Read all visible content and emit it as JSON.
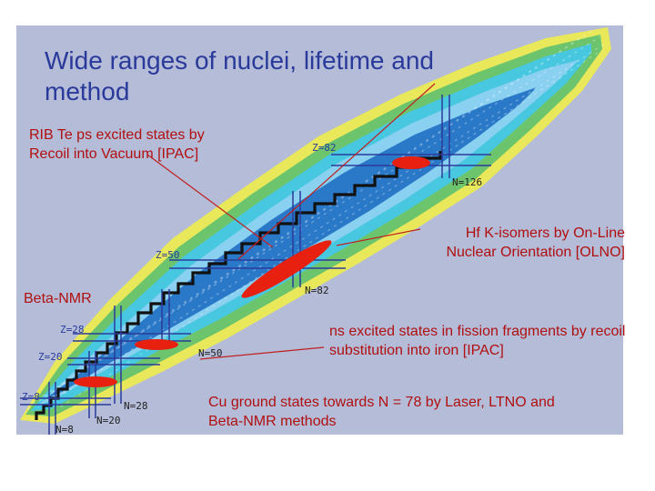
{
  "title": "Wide ranges of nuclei, lifetime and method",
  "annotations": {
    "rib_te": "RIB Te ps excited states by Recoil into Vacuum [IPAC]",
    "hf_k": "Hf K-isomers by On-Line Nuclear Orientation [OLNO]",
    "beta_nmr": "Beta-NMR",
    "ns_excited": "ns excited states in fission fragments by recoil substitution into iron [IPAC]",
    "cu_ground": "Cu ground states towards N = 78 by Laser,  LTNO and Beta-NMR methods"
  },
  "magic_labels": {
    "z82": "Z=82",
    "n126": "N=126",
    "z50": "Z=50",
    "n82": "N=82",
    "z28": "Z=28",
    "n50": "N=50",
    "z20": "Z=20",
    "z8": "Z=8",
    "n28": "N=28",
    "n20": "N=20",
    "n8": "N=8"
  },
  "colors": {
    "panel": "#b4bcd8",
    "title": "#2a3a9a",
    "annotation": "#b01010",
    "highlight": "#e82010",
    "pointer_line": "#c02020",
    "magic_line": "#2a3a9a"
  }
}
